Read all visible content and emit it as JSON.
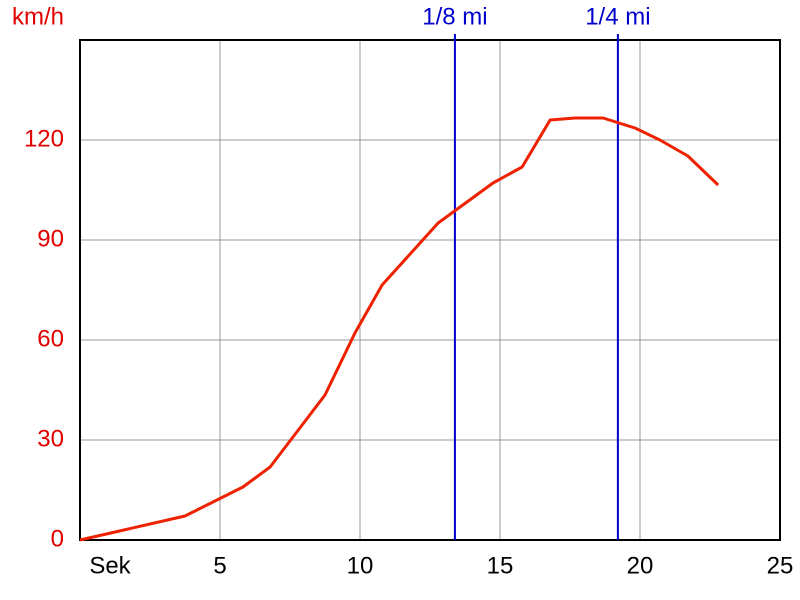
{
  "chart_data": {
    "type": "line",
    "x_label": "Sek",
    "y_label": "km/h",
    "x": [
      0,
      3.75,
      5.82,
      6.79,
      8.75,
      9.82,
      10.79,
      12.79,
      14.75,
      15.79,
      16.79,
      17.68,
      18.68,
      19.82,
      20.71,
      21.71,
      22.79
    ],
    "series": [
      {
        "color": "#ee2200",
        "values": [
          0,
          7.2,
          15.9,
          21.9,
          43.5,
          62.1,
          76.5,
          95.1,
          107.1,
          111.9,
          126,
          126.6,
          126.6,
          123.6,
          120,
          115.2,
          106.5
        ]
      }
    ],
    "xlim": [
      0,
      25
    ],
    "ylim": [
      0,
      150
    ],
    "xticks": [
      5,
      10,
      15,
      20,
      25
    ],
    "yticks": [
      0,
      30,
      60,
      90,
      120
    ],
    "grid": true,
    "axis_label_color": "#e00000",
    "markers": [
      {
        "label": "1/8 mi",
        "x": 13.39,
        "color": "#0000cc"
      },
      {
        "label": "1/4 mi",
        "x": 19.21,
        "color": "#0000cc"
      }
    ]
  }
}
